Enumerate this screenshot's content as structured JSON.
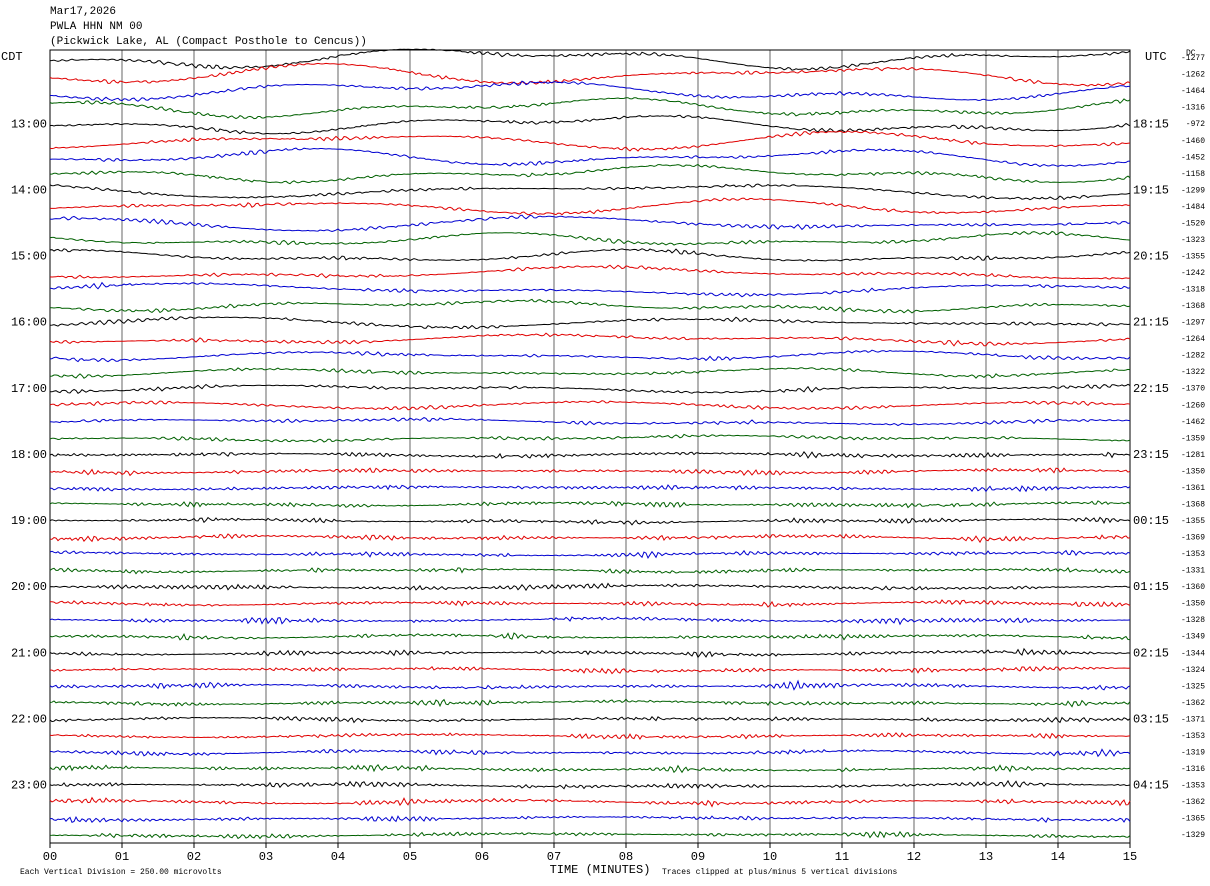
{
  "header": {
    "date": "Mar17,2026",
    "station": "PWLA HHN NM 00",
    "location": "(Pickwick Lake, AL (Compact Posthole to Cencus))"
  },
  "plot": {
    "type": "seismogram",
    "left_axis_title": "CDT",
    "right_axis_title": "UTC",
    "dc_title": "DC",
    "trace_colors": [
      "#000000",
      "#e00000",
      "#0000d0",
      "#006000"
    ],
    "xlim": [
      0,
      15
    ],
    "xticks": [
      {
        "value": 0,
        "label": "00"
      },
      {
        "value": 1,
        "label": "01"
      },
      {
        "value": 2,
        "label": "02"
      },
      {
        "value": 3,
        "label": "03"
      },
      {
        "value": 4,
        "label": "04"
      },
      {
        "value": 5,
        "label": "05"
      },
      {
        "value": 6,
        "label": "06"
      },
      {
        "value": 7,
        "label": "07"
      },
      {
        "value": 8,
        "label": "08"
      },
      {
        "value": 9,
        "label": "09"
      },
      {
        "value": 10,
        "label": "10"
      },
      {
        "value": 11,
        "label": "11"
      },
      {
        "value": 12,
        "label": "12"
      },
      {
        "value": 13,
        "label": "13"
      },
      {
        "value": 14,
        "label": "14"
      },
      {
        "value": 15,
        "label": "15"
      }
    ],
    "x_label": "TIME (MINUTES)",
    "scale_note": "Each Vertical Division =  250.00 microvolts",
    "clip_note": "Traces clipped at plus/minus 5 vertical divisions",
    "cdt_labels": [
      null,
      null,
      null,
      null,
      "13:00",
      null,
      null,
      null,
      "14:00",
      null,
      null,
      null,
      "15:00",
      null,
      null,
      null,
      "16:00",
      null,
      null,
      null,
      "17:00",
      null,
      null,
      null,
      "18:00",
      null,
      null,
      null,
      "19:00",
      null,
      null,
      null,
      "20:00",
      null,
      null,
      null,
      "21:00",
      null,
      null,
      null,
      "22:00",
      null,
      null,
      null,
      "23:00",
      null,
      null,
      null
    ],
    "utc_labels": [
      null,
      null,
      null,
      null,
      "18:15",
      null,
      null,
      null,
      "19:15",
      null,
      null,
      null,
      "20:15",
      null,
      null,
      null,
      "21:15",
      null,
      null,
      null,
      "22:15",
      null,
      null,
      null,
      "23:15",
      null,
      null,
      null,
      "00:15",
      null,
      null,
      null,
      "01:15",
      null,
      null,
      null,
      "02:15",
      null,
      null,
      null,
      "03:15",
      null,
      null,
      null,
      "04:15",
      null,
      null,
      null
    ],
    "dc_offsets": [
      -1277,
      -1262,
      -1464,
      -1316,
      -972,
      -1460,
      -1452,
      -1158,
      -1299,
      -1484,
      -1520,
      -1323,
      -1355,
      -1242,
      -1318,
      -1368,
      -1297,
      -1264,
      -1282,
      -1322,
      -1370,
      -1260,
      -1462,
      -1359,
      -1281,
      -1350,
      -1361,
      -1368,
      -1355,
      -1369,
      -1353,
      -1331,
      -1360,
      -1350,
      -1328,
      -1349,
      -1344,
      -1324,
      -1325,
      -1362,
      -1371,
      -1353,
      -1319,
      -1316,
      -1353,
      -1362,
      -1365,
      -1329
    ]
  }
}
